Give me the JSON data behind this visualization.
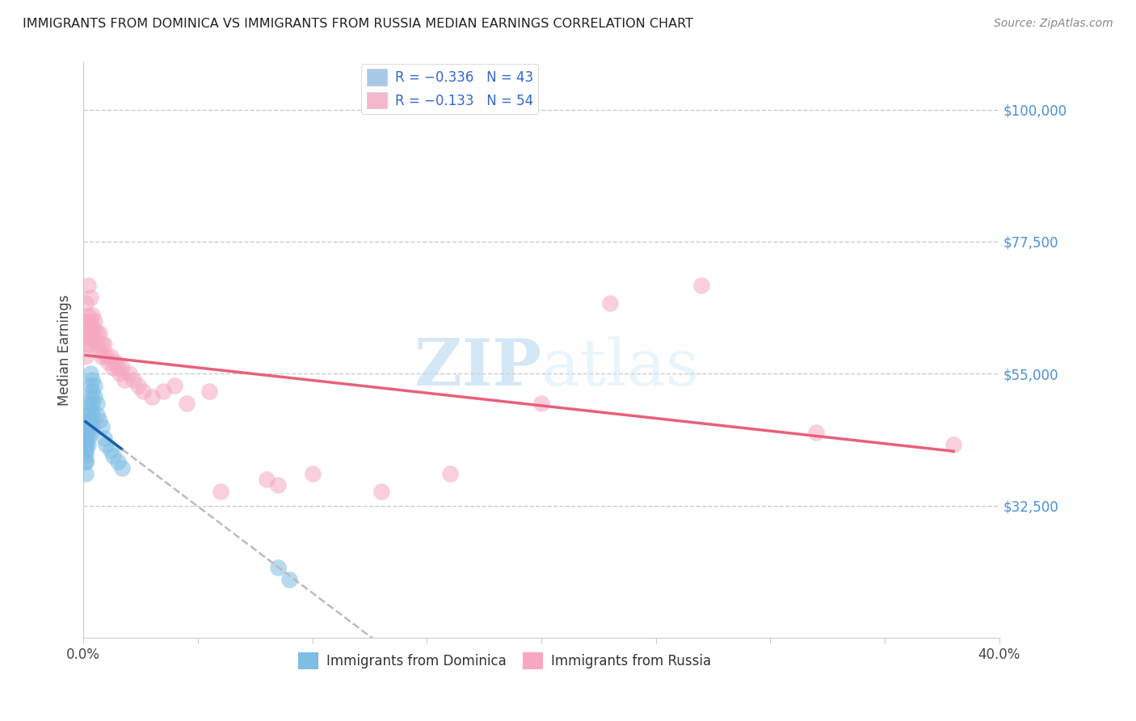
{
  "title": "IMMIGRANTS FROM DOMINICA VS IMMIGRANTS FROM RUSSIA MEDIAN EARNINGS CORRELATION CHART",
  "source": "Source: ZipAtlas.com",
  "ylabel": "Median Earnings",
  "yticks": [
    32500,
    55000,
    77500,
    100000
  ],
  "ytick_labels": [
    "$32,500",
    "$55,000",
    "$77,500",
    "$100,000"
  ],
  "xlim": [
    0.0,
    0.4
  ],
  "ylim": [
    10000,
    108000
  ],
  "watermark_zip": "ZIP",
  "watermark_atlas": "atlas",
  "dominica_color": "#7fbde4",
  "russia_color": "#f5a8c0",
  "dominica_line_color": "#1a5fa8",
  "russia_line_color": "#e8607a",
  "legend_entries": [
    {
      "label": "R = −0.336   N = 43",
      "color": "#a8c8e8"
    },
    {
      "label": "R = −0.133   N = 54",
      "color": "#f5b8cc"
    }
  ],
  "dominica_x": [
    0.001,
    0.001,
    0.001,
    0.001,
    0.001,
    0.001,
    0.001,
    0.001,
    0.001,
    0.001,
    0.001,
    0.002,
    0.002,
    0.002,
    0.002,
    0.002,
    0.002,
    0.002,
    0.003,
    0.003,
    0.003,
    0.003,
    0.003,
    0.003,
    0.004,
    0.004,
    0.004,
    0.004,
    0.004,
    0.005,
    0.005,
    0.006,
    0.006,
    0.007,
    0.008,
    0.009,
    0.01,
    0.012,
    0.013,
    0.015,
    0.017,
    0.085,
    0.09
  ],
  "dominica_y": [
    46000,
    45000,
    44000,
    43000,
    43000,
    42000,
    42000,
    41000,
    40000,
    40000,
    38000,
    50000,
    48000,
    47000,
    46000,
    45000,
    44000,
    43000,
    55000,
    53000,
    51000,
    49000,
    47000,
    45000,
    54000,
    52000,
    50000,
    48000,
    46000,
    53000,
    51000,
    50000,
    48000,
    47000,
    46000,
    44000,
    43000,
    42000,
    41000,
    40000,
    39000,
    22000,
    20000
  ],
  "russia_x": [
    0.001,
    0.001,
    0.001,
    0.001,
    0.001,
    0.002,
    0.002,
    0.002,
    0.002,
    0.003,
    0.003,
    0.003,
    0.003,
    0.004,
    0.004,
    0.004,
    0.005,
    0.005,
    0.006,
    0.006,
    0.007,
    0.007,
    0.008,
    0.008,
    0.009,
    0.01,
    0.011,
    0.012,
    0.013,
    0.014,
    0.015,
    0.016,
    0.017,
    0.018,
    0.02,
    0.022,
    0.024,
    0.026,
    0.03,
    0.035,
    0.04,
    0.045,
    0.055,
    0.06,
    0.08,
    0.085,
    0.1,
    0.13,
    0.16,
    0.2,
    0.23,
    0.27,
    0.32,
    0.38
  ],
  "russia_y": [
    67000,
    64000,
    62000,
    60000,
    58000,
    70000,
    65000,
    63000,
    61000,
    68000,
    64000,
    62000,
    60000,
    65000,
    63000,
    61000,
    64000,
    62000,
    62000,
    60000,
    62000,
    59000,
    60000,
    58000,
    60000,
    58000,
    57000,
    58000,
    56000,
    57000,
    56000,
    55000,
    56000,
    54000,
    55000,
    54000,
    53000,
    52000,
    51000,
    52000,
    53000,
    50000,
    52000,
    35000,
    37000,
    36000,
    38000,
    35000,
    38000,
    50000,
    67000,
    70000,
    45000,
    43000
  ]
}
